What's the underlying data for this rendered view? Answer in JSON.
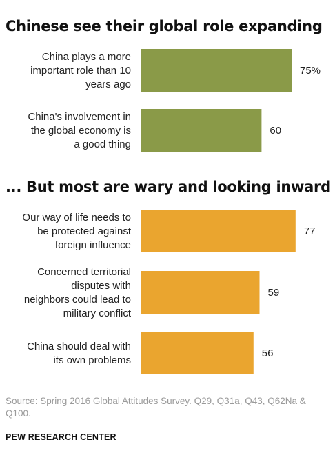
{
  "chart_data": [
    {
      "type": "bar",
      "title": "Chinese see their global role expanding",
      "color": "#8a9a48",
      "categories": [
        [
          "China plays a more",
          "important role than 10",
          "years ago"
        ],
        [
          "China's involvement in",
          "the global economy is",
          "a good thing"
        ]
      ],
      "values": [
        75,
        60
      ],
      "value_labels": [
        "75%",
        "60"
      ]
    },
    {
      "type": "bar",
      "title": "... But most are wary and looking inward",
      "color": "#eaa52f",
      "categories": [
        [
          "Our way of life needs to",
          "be protected against",
          "foreign influence"
        ],
        [
          "Concerned territorial",
          "disputes with",
          "neighbors could lead to",
          "military conflict"
        ],
        [
          "China should deal with",
          "its own problems"
        ]
      ],
      "values": [
        77,
        59,
        56
      ],
      "value_labels": [
        "77",
        "59",
        "56"
      ]
    }
  ],
  "footer": {
    "source": "Source: Spring 2016 Global Attitudes Survey. Q29, Q31a, Q43, Q62Na & Q100.",
    "brand": "PEW RESEARCH CENTER"
  }
}
